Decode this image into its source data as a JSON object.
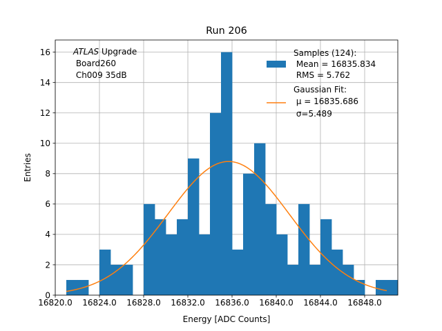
{
  "chart_data": {
    "type": "bar",
    "title": "Run 206",
    "xlabel": "Energy [ADC Counts]",
    "ylabel": "Entries",
    "xlim": [
      16820.0,
      16851.0
    ],
    "ylim": [
      0,
      16.8
    ],
    "grid": true,
    "x_ticks": [
      16820.0,
      16824.0,
      16828.0,
      16832.0,
      16836.0,
      16840.0,
      16844.0,
      16848.0
    ],
    "x_tick_labels": [
      "16820.0",
      "16824.0",
      "16828.0",
      "16832.0",
      "16836.0",
      "16840.0",
      "16844.0",
      "16848.0"
    ],
    "y_ticks": [
      0,
      2,
      4,
      6,
      8,
      10,
      12,
      14,
      16
    ],
    "y_tick_labels": [
      "0",
      "2",
      "4",
      "6",
      "8",
      "10",
      "12",
      "14",
      "16"
    ],
    "histogram": {
      "bin_start": 16821.0,
      "bin_width": 1.0,
      "counts": [
        1,
        1,
        0,
        3,
        2,
        2,
        0,
        6,
        5,
        4,
        5,
        9,
        4,
        12,
        16,
        3,
        8,
        10,
        6,
        4,
        2,
        6,
        2,
        5,
        3,
        2,
        1,
        0,
        1,
        1
      ],
      "color": "#1f77b4"
    },
    "fit": {
      "mu": 16835.686,
      "sigma": 5.489,
      "amplitude": 8.8,
      "x_range": [
        16821.0,
        16850.0
      ],
      "color": "#ff7f0e"
    },
    "legend_position": "top-right",
    "legend": [
      {
        "name": "samples",
        "kind": "patch",
        "color": "#1f77b4",
        "lines": [
          "Samples (124):",
          " Mean = 16835.834",
          " RMS = 5.762"
        ]
      },
      {
        "name": "gaussian-fit",
        "kind": "line",
        "color": "#ff7f0e",
        "lines": [
          "Gaussian Fit:",
          " μ = 16835.686",
          " σ=5.489"
        ]
      }
    ],
    "annotation": {
      "line1_italic": "ATLAS",
      "line1_rest": " Upgrade",
      "line2": " Board260",
      "line3": " Ch009 35dB"
    }
  }
}
